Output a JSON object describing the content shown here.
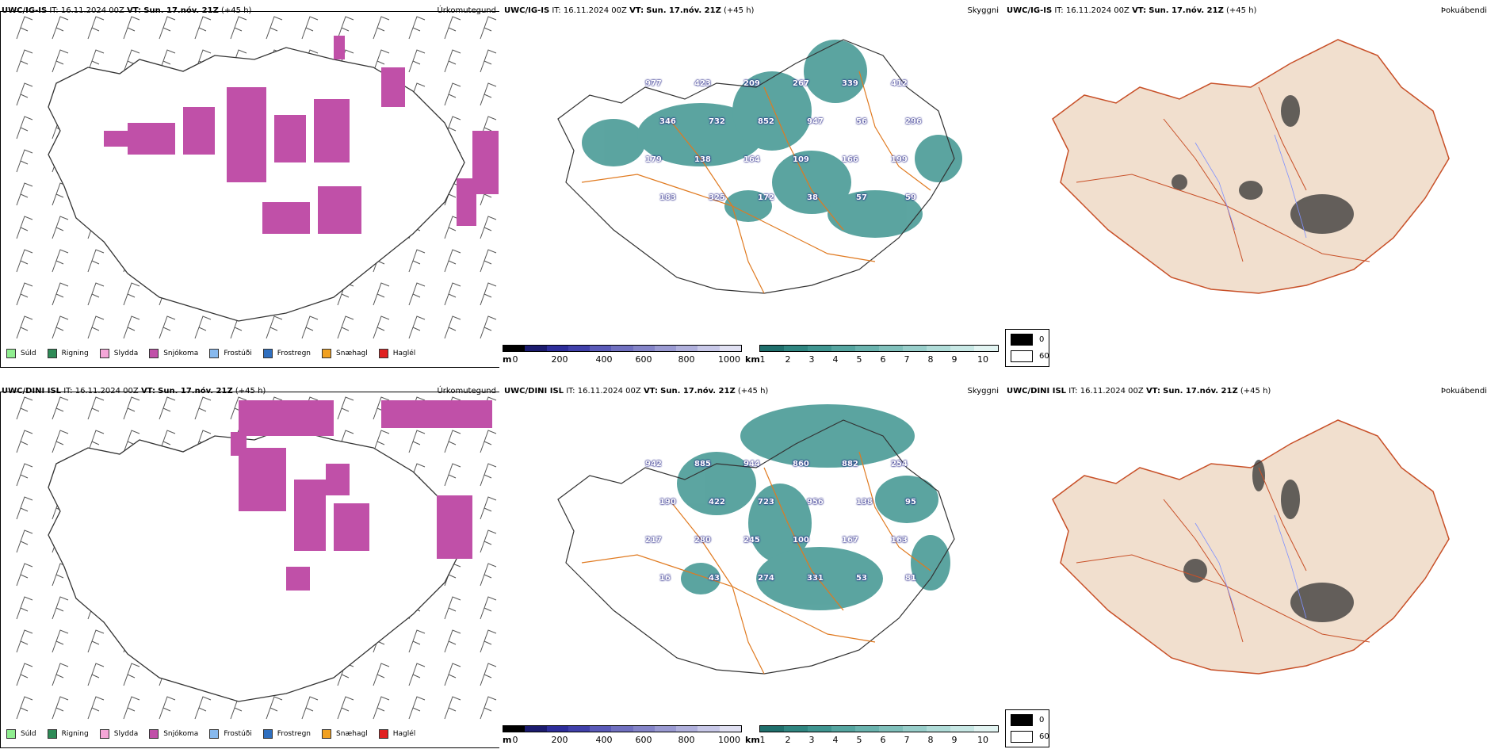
{
  "rows": [
    {
      "model": "UWC/IG-IS",
      "it_label": "IT:",
      "it_value": "16.11.2024 00Z",
      "vt_label": "VT:",
      "vt_value": "Sun. 17.nóv. 21Z",
      "lead": "(+45 h)",
      "labels": [
        "977",
        "423",
        "209",
        "267",
        "339",
        "412",
        "346",
        "732",
        "852",
        "947",
        "56",
        "296",
        "179",
        "138",
        "164",
        "109",
        "166",
        "199",
        "183",
        "325",
        "172",
        "38",
        "57",
        "59"
      ]
    },
    {
      "model": "UWC/DINI ISL",
      "it_label": "IT:",
      "it_value": "16.11.2024 00Z",
      "vt_label": "VT:",
      "vt_value": "Sun. 17.nóv. 21Z",
      "lead": "(+45 h)",
      "labels": [
        "942",
        "885",
        "944",
        "860",
        "882",
        "254",
        "190",
        "422",
        "723",
        "956",
        "138",
        "95",
        "217",
        "280",
        "245",
        "100",
        "167",
        "163",
        "16",
        "43",
        "274",
        "331",
        "53",
        "81"
      ]
    }
  ],
  "categories": {
    "precip": "Úrkomutegund",
    "cloud": "Skyggni",
    "fog": "Þokuábendi"
  },
  "precip_legend": [
    {
      "label": "Súld",
      "color": "#90ee90"
    },
    {
      "label": "Rigning",
      "color": "#2e8b57"
    },
    {
      "label": "Slydda",
      "color": "#f4a6d7"
    },
    {
      "label": "Snjókoma",
      "color": "#c050a8"
    },
    {
      "label": "Frostúði",
      "color": "#87b9ee"
    },
    {
      "label": "Frostregn",
      "color": "#2f6fbf"
    },
    {
      "label": "Snæhagl",
      "color": "#f0a020"
    },
    {
      "label": "Haglél",
      "color": "#e02020"
    }
  ],
  "ceiling_bar": {
    "unit": "m",
    "ticks": [
      "0",
      "200",
      "400",
      "600",
      "800",
      "1000"
    ],
    "colors": [
      "#000000",
      "#1b1b6e",
      "#2d2d9a",
      "#4040aa",
      "#5a5ab8",
      "#7070c0",
      "#8484c8",
      "#9a9ad2",
      "#b0b0dc",
      "#c8c8e8",
      "#e0e0f2"
    ]
  },
  "vis_bar": {
    "unit": "km",
    "ticks": [
      "1",
      "2",
      "3",
      "4",
      "5",
      "6",
      "7",
      "8",
      "9",
      "10"
    ],
    "colors": [
      "#1f6f6c",
      "#2f8580",
      "#3f9590",
      "#55a5a0",
      "#6ab3ae",
      "#80c0bb",
      "#98ceca",
      "#b0dcd8",
      "#c8e8e5",
      "#e2f4f2"
    ]
  },
  "fog_legend": [
    {
      "label": "0",
      "color": "#000000"
    },
    {
      "label": "60",
      "color": "#ffffff"
    }
  ]
}
